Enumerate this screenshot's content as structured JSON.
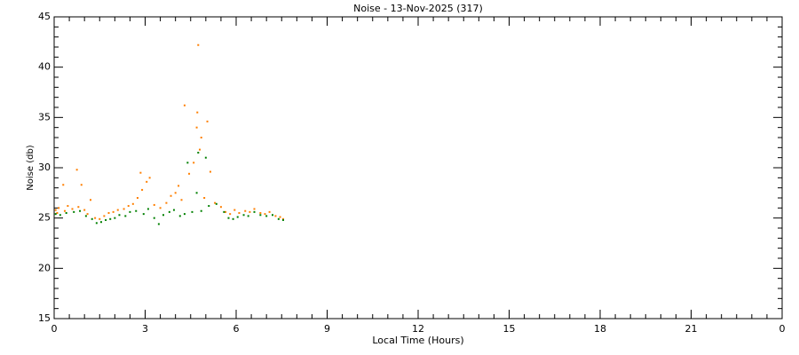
{
  "chart_data": {
    "type": "scatter",
    "title": "Noise - 13-Nov-2025 (317)",
    "x_label": "Local Time (Hours)",
    "y_label": "Noise (db)",
    "xlim": [
      0,
      24
    ],
    "xticks": [
      0,
      3,
      6,
      9,
      12,
      15,
      18,
      21,
      {
        "value": 24,
        "label": "0"
      }
    ],
    "ylim": [
      15,
      45
    ],
    "yticks": [
      15,
      20,
      25,
      30,
      35,
      40,
      45
    ],
    "series": [
      {
        "color": "#ff7f00",
        "x": [
          0.05,
          0.1,
          0.15,
          0.3,
          0.35,
          0.45,
          0.6,
          0.75,
          0.8,
          0.9,
          1.0,
          1.1,
          1.2,
          1.35,
          1.5,
          1.65,
          1.8,
          1.95,
          2.1,
          2.3,
          2.45,
          2.6,
          2.75,
          2.85,
          2.9,
          3.05,
          3.15,
          3.3,
          3.5,
          3.7,
          3.85,
          4.0,
          4.1,
          4.2,
          4.3,
          4.45,
          4.6,
          4.7,
          4.72,
          4.75,
          4.8,
          4.85,
          4.95,
          5.05,
          5.15,
          5.3,
          5.5,
          5.65,
          5.8,
          5.95,
          6.1,
          6.3,
          6.45,
          6.6,
          6.8,
          6.95,
          7.1,
          7.3,
          7.45,
          7.55
        ],
        "values": [
          25.8,
          25.5,
          26.0,
          28.3,
          25.7,
          26.2,
          25.9,
          29.8,
          26.1,
          28.3,
          25.8,
          25.4,
          26.8,
          25.0,
          24.9,
          25.2,
          25.5,
          25.6,
          25.8,
          25.9,
          26.2,
          26.4,
          27.0,
          29.5,
          27.8,
          28.6,
          29.0,
          26.3,
          26.0,
          26.5,
          27.2,
          27.5,
          28.2,
          26.8,
          36.2,
          29.4,
          30.5,
          34.0,
          35.5,
          42.2,
          31.8,
          33.0,
          27.0,
          34.6,
          29.6,
          26.5,
          26.1,
          25.6,
          25.4,
          25.8,
          25.5,
          25.7,
          25.6,
          25.9,
          25.5,
          25.4,
          25.6,
          25.2,
          25.1,
          24.9
        ]
      },
      {
        "color": "#008000",
        "x": [
          0.05,
          0.2,
          0.4,
          0.65,
          0.85,
          1.05,
          1.25,
          1.4,
          1.55,
          1.7,
          1.85,
          2.0,
          2.15,
          2.35,
          2.5,
          2.7,
          2.95,
          3.1,
          3.3,
          3.45,
          3.6,
          3.8,
          3.95,
          4.15,
          4.3,
          4.4,
          4.55,
          4.7,
          4.75,
          4.85,
          5.0,
          5.1,
          5.35,
          5.6,
          5.75,
          5.9,
          6.05,
          6.25,
          6.4,
          6.6,
          6.8,
          7.0,
          7.2,
          7.4,
          7.55
        ],
        "values": [
          25.4,
          25.3,
          25.5,
          25.6,
          25.7,
          25.2,
          24.9,
          24.5,
          24.6,
          24.8,
          24.9,
          25.0,
          25.3,
          25.2,
          25.6,
          25.7,
          25.4,
          25.9,
          25.0,
          24.4,
          25.3,
          25.6,
          25.8,
          25.2,
          25.4,
          30.5,
          25.6,
          27.5,
          31.5,
          25.7,
          31.0,
          26.2,
          26.4,
          25.6,
          25.0,
          24.9,
          25.1,
          25.3,
          25.2,
          25.6,
          25.3,
          25.2,
          25.3,
          24.9,
          24.8
        ]
      }
    ]
  }
}
